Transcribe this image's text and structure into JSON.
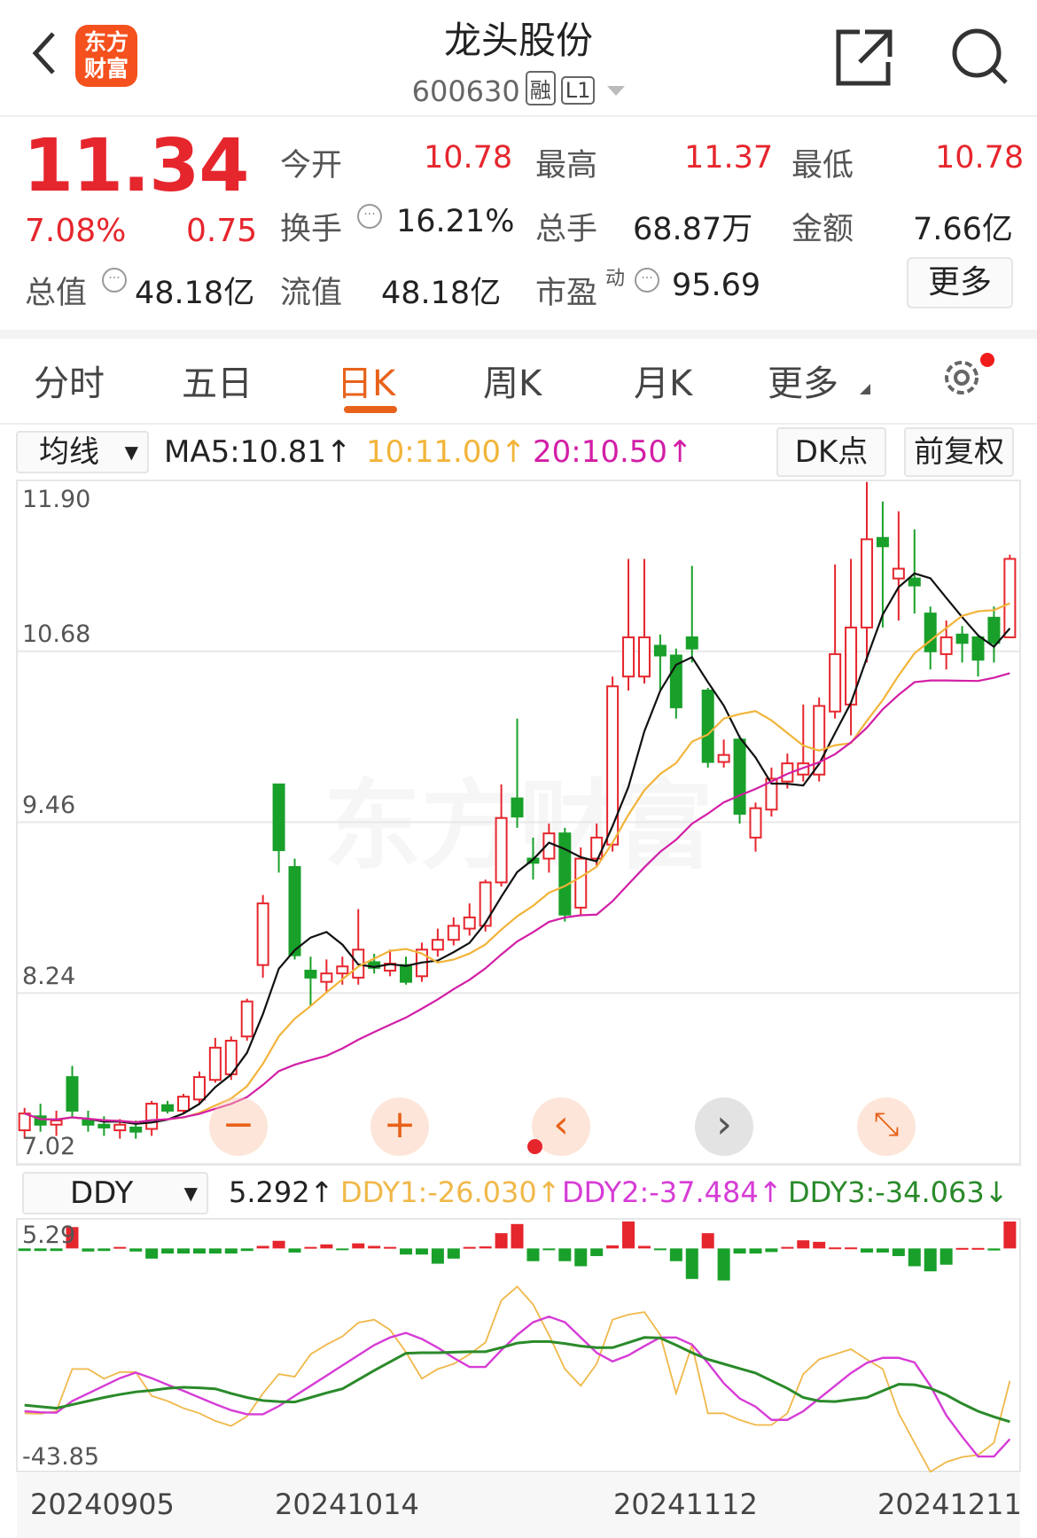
{
  "header": {
    "title": "龙头股份",
    "code": "600630",
    "tag_margin": "融",
    "tag_level": "L1",
    "logo_text": "东方财富"
  },
  "quote": {
    "price": "11.34",
    "change_pct": "7.08%",
    "change": "0.75",
    "open_label": "今开",
    "open": "10.78",
    "high_label": "最高",
    "high": "11.37",
    "low_label": "最低",
    "low": "10.78",
    "turnover_label": "换手",
    "turnover": "16.21%",
    "volume_label": "总手",
    "volume": "68.87万",
    "amount_label": "金额",
    "amount": "7.66亿",
    "mktcap_label": "总值",
    "mktcap": "48.18亿",
    "float_label": "流值",
    "float_cap": "48.18亿",
    "pe_label": "市盈",
    "pe_sup": "动",
    "pe": "95.69",
    "more": "更多"
  },
  "tabs": [
    {
      "label": "分时"
    },
    {
      "label": "五日"
    },
    {
      "label": "日K",
      "active": true
    },
    {
      "label": "周K"
    },
    {
      "label": "月K"
    },
    {
      "label": "更多"
    }
  ],
  "ma_bar": {
    "selector": "均线",
    "ma5": "MA5:10.81↑",
    "ma10": "10:11.00↑",
    "ma20": "20:10.50↑",
    "dk": "DK点",
    "adjust": "前复权"
  },
  "colors": {
    "up": "#e6262d",
    "down": "#19a02a",
    "ma5": "#111111",
    "ma10": "#f2b43a",
    "ma20": "#d21ea6",
    "ddy1": "#f0b84a",
    "ddy2": "#d63cd6",
    "ddy3": "#2a8a2a",
    "accent": "#e8621b"
  },
  "chart_data": {
    "type": "candlestick",
    "price_ticks": [
      "11.90",
      "10.68",
      "9.46",
      "8.24",
      "7.02"
    ],
    "ylim": [
      7.02,
      11.9
    ],
    "x_labels": [
      "20240905",
      "20241014",
      "20241112",
      "20241211"
    ],
    "x_label_index": [
      0,
      20,
      41,
      62
    ],
    "watermark": "东方财富",
    "candles_ohlc_note": "[open,close,high,low]",
    "candles": [
      [
        7.26,
        7.38,
        7.42,
        7.2
      ],
      [
        7.36,
        7.3,
        7.45,
        7.25
      ],
      [
        7.3,
        7.33,
        7.4,
        7.22
      ],
      [
        7.64,
        7.4,
        7.72,
        7.35
      ],
      [
        7.34,
        7.3,
        7.4,
        7.25
      ],
      [
        7.3,
        7.28,
        7.36,
        7.22
      ],
      [
        7.26,
        7.3,
        7.34,
        7.2
      ],
      [
        7.28,
        7.25,
        7.33,
        7.2
      ],
      [
        7.27,
        7.45,
        7.47,
        7.22
      ],
      [
        7.44,
        7.4,
        7.47,
        7.38
      ],
      [
        7.4,
        7.5,
        7.52,
        7.38
      ],
      [
        7.48,
        7.64,
        7.68,
        7.45
      ],
      [
        7.62,
        7.85,
        7.92,
        7.6
      ],
      [
        7.66,
        7.9,
        7.93,
        7.62
      ],
      [
        7.93,
        8.18,
        8.2,
        7.9
      ],
      [
        8.44,
        8.88,
        8.94,
        8.35
      ],
      [
        9.73,
        9.26,
        9.73,
        9.1
      ],
      [
        9.14,
        8.51,
        9.2,
        8.48
      ],
      [
        8.4,
        8.35,
        8.5,
        8.15
      ],
      [
        8.32,
        8.38,
        8.48,
        8.25
      ],
      [
        8.38,
        8.43,
        8.5,
        8.3
      ],
      [
        8.35,
        8.55,
        8.84,
        8.3
      ],
      [
        8.46,
        8.42,
        8.52,
        8.38
      ],
      [
        8.4,
        8.45,
        8.55,
        8.36
      ],
      [
        8.44,
        8.32,
        8.5,
        8.3
      ],
      [
        8.36,
        8.55,
        8.6,
        8.32
      ],
      [
        8.55,
        8.62,
        8.7,
        8.5
      ],
      [
        8.62,
        8.72,
        8.78,
        8.58
      ],
      [
        8.7,
        8.78,
        8.88,
        8.65
      ],
      [
        8.72,
        9.03,
        9.05,
        8.68
      ],
      [
        9.03,
        9.49,
        9.73,
        9.0
      ],
      [
        9.63,
        9.5,
        10.2,
        9.42
      ],
      [
        9.2,
        9.17,
        9.35,
        9.05
      ],
      [
        9.2,
        9.38,
        9.45,
        9.1
      ],
      [
        9.38,
        8.8,
        9.42,
        8.75
      ],
      [
        8.85,
        9.2,
        9.28,
        8.8
      ],
      [
        9.2,
        9.35,
        9.45,
        9.15
      ],
      [
        9.3,
        10.43,
        10.5,
        9.25
      ],
      [
        10.5,
        10.78,
        11.34,
        10.4
      ],
      [
        10.5,
        10.78,
        11.34,
        10.45
      ],
      [
        10.72,
        10.65,
        10.8,
        10.4
      ],
      [
        10.65,
        10.28,
        10.7,
        10.2
      ],
      [
        10.78,
        10.7,
        11.29,
        10.6
      ],
      [
        10.4,
        9.89,
        10.42,
        9.85
      ],
      [
        9.89,
        9.94,
        10.05,
        9.85
      ],
      [
        10.05,
        9.52,
        10.08,
        9.45
      ],
      [
        9.35,
        9.56,
        9.6,
        9.25
      ],
      [
        9.55,
        9.77,
        9.85,
        9.5
      ],
      [
        9.75,
        9.88,
        9.95,
        9.7
      ],
      [
        9.8,
        9.88,
        10.3,
        9.75
      ],
      [
        9.8,
        10.29,
        10.35,
        9.75
      ],
      [
        10.25,
        10.66,
        11.3,
        10.2
      ],
      [
        10.3,
        10.85,
        11.34,
        10.08
      ],
      [
        10.85,
        11.48,
        11.89,
        10.6
      ],
      [
        11.49,
        11.43,
        11.75,
        10.85
      ],
      [
        11.2,
        11.27,
        11.68,
        10.9
      ],
      [
        11.2,
        11.15,
        11.55,
        10.95
      ],
      [
        10.95,
        10.68,
        11.0,
        10.55
      ],
      [
        10.66,
        10.78,
        10.9,
        10.55
      ],
      [
        10.8,
        10.74,
        10.86,
        10.6
      ],
      [
        10.78,
        10.62,
        10.8,
        10.5
      ],
      [
        10.92,
        10.74,
        11.0,
        10.6
      ],
      [
        10.78,
        11.34,
        11.37,
        10.78
      ]
    ],
    "indicator": {
      "selector": "DDY",
      "value": "5.292↑",
      "ddy1_label": "DDY1:-26.030↑",
      "ddy2_label": "DDY2:-37.484↑",
      "ddy3_label": "DDY3:-34.063↓",
      "top_tick": "5.29",
      "bottom_tick": "-43.85",
      "ylim": [
        -43.85,
        5.29
      ],
      "ddy": [
        -0.5,
        -0.5,
        -0.5,
        4.2,
        -0.6,
        -0.5,
        0.3,
        -0.6,
        -2,
        -1,
        -1,
        -1,
        -1,
        -1,
        -0.5,
        0.5,
        1.5,
        -0.8,
        0.3,
        0.8,
        -0.3,
        1,
        0.5,
        0.3,
        -1.2,
        -1.2,
        -3,
        -2,
        0.3,
        0.4,
        3,
        4.8,
        -2.5,
        -0.3,
        -2.5,
        -3.5,
        -1.5,
        0.6,
        5.3,
        0.5,
        -0.3,
        -2.5,
        -6,
        3,
        -6.3,
        -1,
        -1,
        -0.7,
        0.3,
        1.6,
        1.3,
        0.2,
        0.2,
        -0.8,
        -0.8,
        -1.5,
        -3.5,
        -4.5,
        -3.2,
        0.1,
        0.1,
        -0.4,
        5.29
      ],
      "ddy1": [
        -32.4,
        -32.5,
        -32,
        -23.7,
        -23.7,
        -25.6,
        -24.3,
        -24.3,
        -29,
        -30,
        -31.4,
        -32.4,
        -33.9,
        -34.9,
        -33,
        -28.5,
        -24.7,
        -25.2,
        -20.8,
        -18.9,
        -17.3,
        -14.6,
        -14,
        -16,
        -20.4,
        -25.6,
        -23.7,
        -22.7,
        -20.8,
        -18.5,
        -10.2,
        -7.5,
        -11,
        -17,
        -23.7,
        -27,
        -22.7,
        -14,
        -13,
        -12.5,
        -17,
        -28.5,
        -19,
        -32.4,
        -32.4,
        -33.7,
        -34.7,
        -34.7,
        -32.4,
        -24.7,
        -21.8,
        -20.8,
        -19.8,
        -21.8,
        -23.7,
        -32.4,
        -38.2,
        -43.9,
        -42,
        -41,
        -40.6,
        -38.2,
        -26.03
      ],
      "ddy2": [
        -32,
        -32.2,
        -32.3,
        -30,
        -28.5,
        -27,
        -25.5,
        -24.4,
        -25.5,
        -26.8,
        -28,
        -29.3,
        -30.6,
        -31.8,
        -32.6,
        -32.6,
        -31,
        -29,
        -27,
        -25,
        -23,
        -21,
        -19,
        -17.5,
        -16.6,
        -17.8,
        -19.5,
        -21.5,
        -23.3,
        -23.3,
        -20,
        -17,
        -14.5,
        -13.4,
        -14.5,
        -17.5,
        -20.5,
        -22.2,
        -21,
        -19.2,
        -17.5,
        -17.5,
        -18.9,
        -22.5,
        -26.5,
        -29.5,
        -31.1,
        -33.7,
        -33.7,
        -32,
        -29.5,
        -27,
        -24.5,
        -22.5,
        -21.5,
        -21.5,
        -22.4,
        -27,
        -32.8,
        -37,
        -40.9,
        -40.9,
        -37.484
      ],
      "ddy3": [
        -30.8,
        -31.1,
        -31.4,
        -30.7,
        -30,
        -29.3,
        -28.7,
        -28.2,
        -27.9,
        -27.5,
        -27.3,
        -27.4,
        -27.6,
        -28.5,
        -29.3,
        -29.9,
        -30.1,
        -30.2,
        -29.3,
        -28.4,
        -27.6,
        -25.8,
        -24,
        -22.3,
        -20.6,
        -20.5,
        -20.5,
        -20.4,
        -20.3,
        -20.3,
        -19.5,
        -18.6,
        -18.3,
        -18.3,
        -18.7,
        -19.2,
        -19.5,
        -19.5,
        -18.5,
        -17.5,
        -17.6,
        -19,
        -20.5,
        -21.8,
        -22.7,
        -23.6,
        -24.5,
        -26,
        -27.5,
        -29.3,
        -30,
        -30.1,
        -29.7,
        -29.3,
        -28,
        -26.7,
        -26.8,
        -27.5,
        -28.8,
        -30.5,
        -32,
        -33.1,
        -34.063
      ]
    }
  },
  "chart_tools": [
    {
      "icon": "zoom-out-icon",
      "glyph": "−"
    },
    {
      "icon": "zoom-in-icon",
      "glyph": "+"
    },
    {
      "icon": "prev-icon",
      "glyph": "‹"
    },
    {
      "icon": "next-icon",
      "glyph": "›"
    },
    {
      "icon": "fullscreen-icon",
      "glyph": "⤡"
    }
  ]
}
